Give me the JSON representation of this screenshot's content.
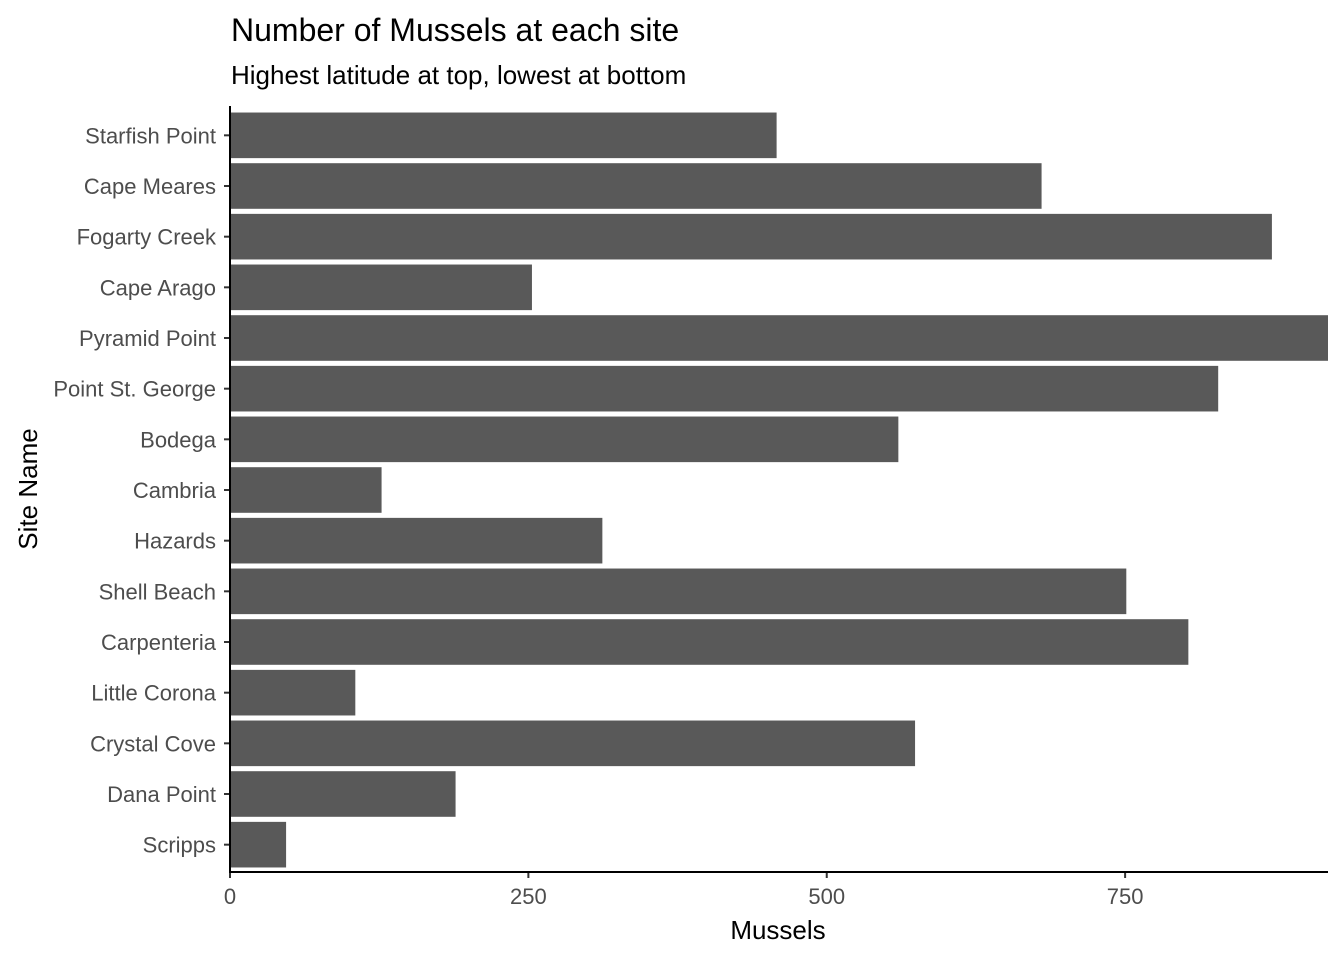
{
  "chart_data": {
    "type": "bar",
    "orientation": "horizontal",
    "title": "Number of Mussels at each site",
    "subtitle": "Highest latitude at top, lowest at bottom",
    "xlabel": "Mussels",
    "ylabel": "Site Name",
    "categories": [
      "Starfish Point",
      "Cape Meares",
      "Fogarty Creek",
      "Cape Arago",
      "Pyramid Point",
      "Point St. George",
      "Bodega",
      "Cambria",
      "Hazards",
      "Shell Beach",
      "Carpenteria",
      "Little Corona",
      "Crystal Cove",
      "Dana Point",
      "Scripps"
    ],
    "values": [
      458,
      680,
      873,
      253,
      920,
      828,
      560,
      127,
      312,
      751,
      803,
      105,
      574,
      189,
      47
    ],
    "xlim": [
      0,
      920
    ],
    "xticks": [
      0,
      250,
      500,
      750
    ],
    "xtick_labels": [
      "0",
      "250",
      "500",
      "750"
    ],
    "grid": false,
    "bar_color": "#595959"
  }
}
